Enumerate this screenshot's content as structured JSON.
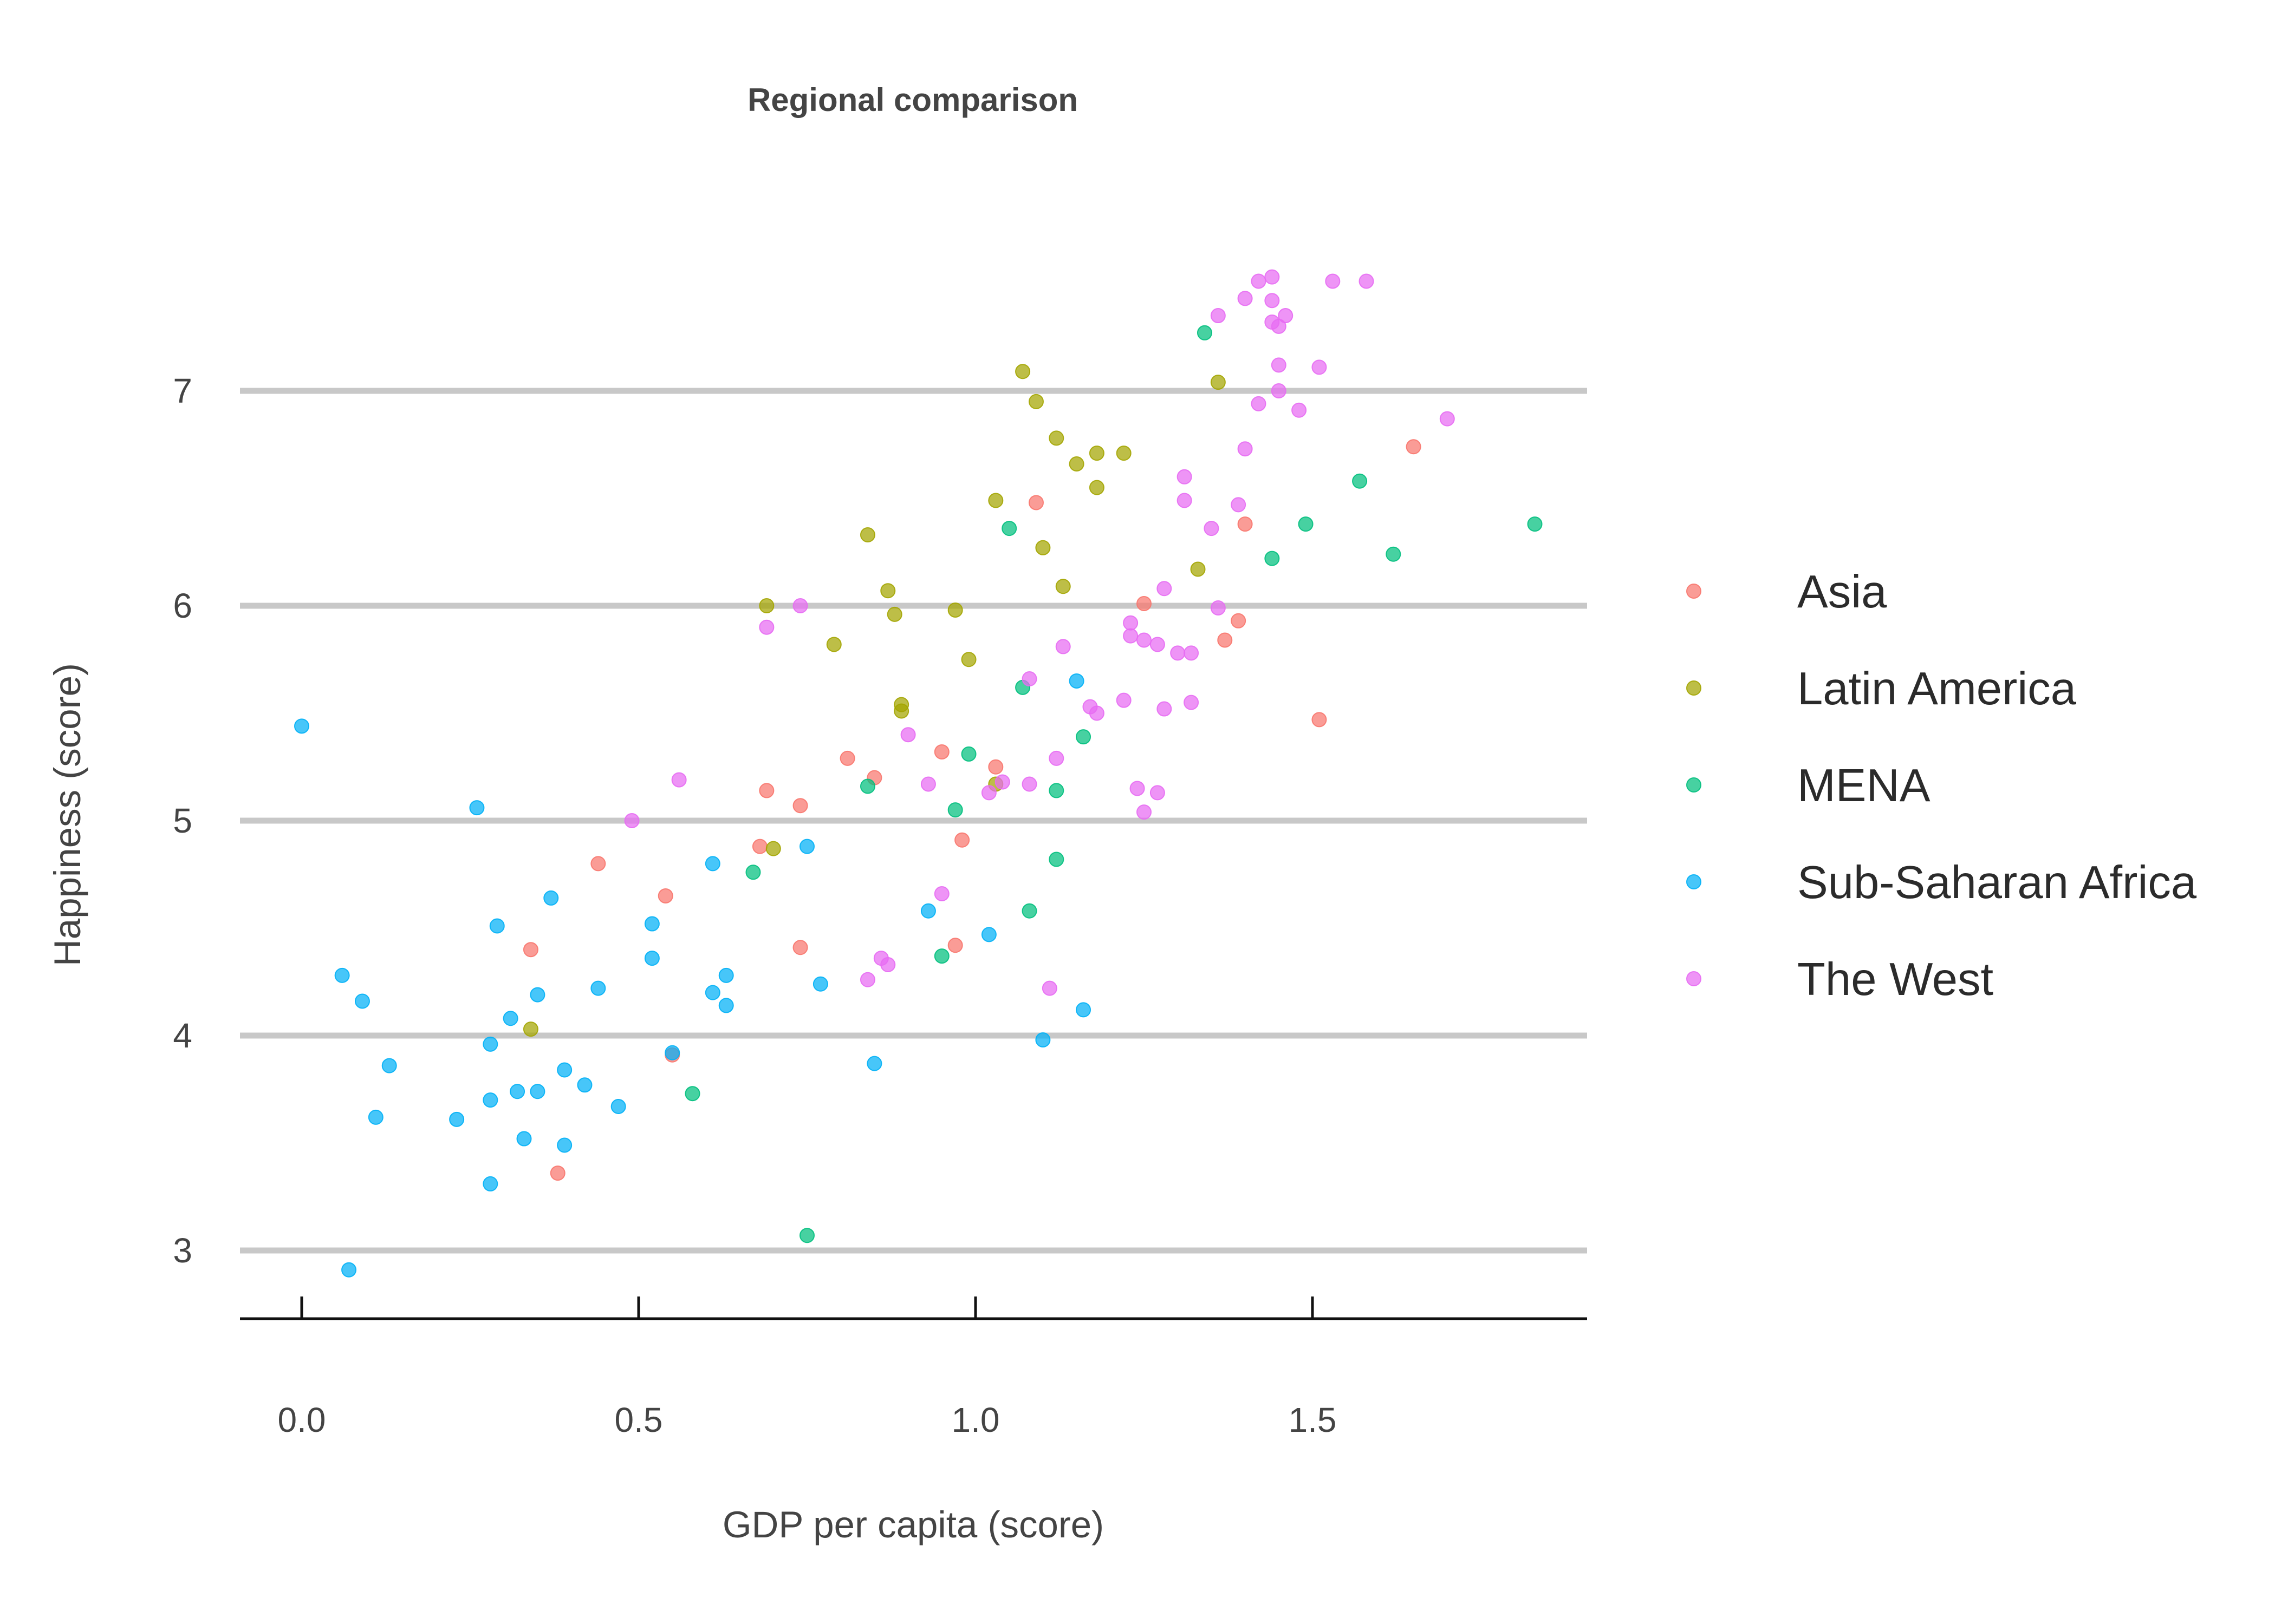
{
  "chart_data": {
    "type": "scatter",
    "title": "Regional comparison",
    "xlabel": "GDP per capita (score)",
    "ylabel": "Happiness (score)",
    "xlim": [
      -0.09,
      1.92
    ],
    "ylim": [
      2.68,
      7.9
    ],
    "xticks": [
      0.0,
      0.5,
      1.0,
      1.5
    ],
    "xtick_labels": [
      "0.0",
      "0.5",
      "1.0",
      "1.5"
    ],
    "yticks": [
      3,
      4,
      5,
      6,
      7
    ],
    "ytick_labels": [
      "3",
      "4",
      "5",
      "6",
      "7"
    ],
    "grid": "horizontal major",
    "legend_position": "right",
    "series": [
      {
        "name": "Asia",
        "color": "#F8766D",
        "points": [
          [
            0.34,
            4.4
          ],
          [
            0.38,
            3.36
          ],
          [
            0.44,
            4.8
          ],
          [
            0.54,
            4.65
          ],
          [
            0.55,
            3.91
          ],
          [
            0.68,
            4.88
          ],
          [
            0.69,
            5.14
          ],
          [
            0.74,
            5.07
          ],
          [
            0.74,
            4.41
          ],
          [
            0.81,
            5.29
          ],
          [
            0.85,
            5.2
          ],
          [
            0.95,
            5.32
          ],
          [
            0.97,
            4.42
          ],
          [
            0.98,
            4.91
          ],
          [
            1.03,
            5.25
          ],
          [
            1.09,
            6.48
          ],
          [
            1.25,
            6.01
          ],
          [
            1.37,
            5.84
          ],
          [
            1.39,
            5.93
          ],
          [
            1.4,
            6.38
          ],
          [
            1.51,
            5.47
          ],
          [
            1.65,
            6.74
          ]
        ]
      },
      {
        "name": "Latin America",
        "color": "#A3A500",
        "points": [
          [
            0.34,
            4.03
          ],
          [
            0.69,
            6.0
          ],
          [
            0.7,
            4.87
          ],
          [
            0.79,
            5.82
          ],
          [
            0.84,
            6.33
          ],
          [
            0.87,
            6.07
          ],
          [
            0.88,
            5.96
          ],
          [
            0.89,
            5.54
          ],
          [
            0.89,
            5.51
          ],
          [
            0.97,
            5.98
          ],
          [
            0.99,
            5.75
          ],
          [
            1.03,
            6.49
          ],
          [
            1.03,
            5.17
          ],
          [
            1.07,
            7.09
          ],
          [
            1.09,
            6.95
          ],
          [
            1.1,
            6.27
          ],
          [
            1.12,
            6.78
          ],
          [
            1.13,
            6.09
          ],
          [
            1.15,
            6.66
          ],
          [
            1.18,
            6.55
          ],
          [
            1.18,
            6.71
          ],
          [
            1.22,
            6.71
          ],
          [
            1.33,
            6.17
          ],
          [
            1.36,
            7.04
          ]
        ]
      },
      {
        "name": "MENA",
        "color": "#00BF7D",
        "points": [
          [
            0.58,
            3.73
          ],
          [
            0.67,
            4.76
          ],
          [
            0.75,
            3.07
          ],
          [
            0.84,
            5.16
          ],
          [
            0.95,
            4.37
          ],
          [
            0.97,
            5.05
          ],
          [
            0.99,
            5.31
          ],
          [
            1.05,
            6.36
          ],
          [
            1.07,
            5.62
          ],
          [
            1.08,
            4.58
          ],
          [
            1.12,
            5.14
          ],
          [
            1.12,
            4.82
          ],
          [
            1.16,
            5.39
          ],
          [
            1.34,
            7.27
          ],
          [
            1.44,
            6.22
          ],
          [
            1.49,
            6.38
          ],
          [
            1.57,
            6.58
          ],
          [
            1.62,
            6.24
          ],
          [
            1.83,
            6.38
          ]
        ]
      },
      {
        "name": "Sub-Saharan Africa",
        "color": "#00B0F6",
        "points": [
          [
            0.0,
            5.44
          ],
          [
            0.06,
            4.28
          ],
          [
            0.07,
            2.91
          ],
          [
            0.09,
            4.16
          ],
          [
            0.11,
            3.62
          ],
          [
            0.13,
            3.86
          ],
          [
            0.23,
            3.61
          ],
          [
            0.26,
            5.06
          ],
          [
            0.28,
            3.96
          ],
          [
            0.28,
            3.7
          ],
          [
            0.28,
            3.31
          ],
          [
            0.29,
            4.51
          ],
          [
            0.31,
            4.08
          ],
          [
            0.32,
            3.74
          ],
          [
            0.33,
            3.52
          ],
          [
            0.35,
            3.74
          ],
          [
            0.35,
            4.19
          ],
          [
            0.37,
            4.64
          ],
          [
            0.39,
            3.84
          ],
          [
            0.39,
            3.49
          ],
          [
            0.42,
            3.77
          ],
          [
            0.44,
            4.22
          ],
          [
            0.47,
            3.67
          ],
          [
            0.52,
            4.52
          ],
          [
            0.52,
            4.36
          ],
          [
            0.55,
            3.92
          ],
          [
            0.61,
            4.2
          ],
          [
            0.61,
            4.8
          ],
          [
            0.63,
            4.28
          ],
          [
            0.63,
            4.14
          ],
          [
            0.75,
            4.88
          ],
          [
            0.77,
            4.24
          ],
          [
            0.85,
            3.87
          ],
          [
            0.93,
            4.58
          ],
          [
            1.02,
            4.47
          ],
          [
            1.1,
            3.98
          ],
          [
            1.15,
            5.65
          ],
          [
            1.16,
            4.12
          ]
        ]
      },
      {
        "name": "The West",
        "color": "#E76BF3",
        "points": [
          [
            0.49,
            5.0
          ],
          [
            0.56,
            5.19
          ],
          [
            0.69,
            5.9
          ],
          [
            0.74,
            6.0
          ],
          [
            0.84,
            4.26
          ],
          [
            0.86,
            4.36
          ],
          [
            0.87,
            4.33
          ],
          [
            0.9,
            5.4
          ],
          [
            0.93,
            5.17
          ],
          [
            0.95,
            4.66
          ],
          [
            1.02,
            5.13
          ],
          [
            1.04,
            5.18
          ],
          [
            1.08,
            5.66
          ],
          [
            1.08,
            5.17
          ],
          [
            1.11,
            4.22
          ],
          [
            1.12,
            5.29
          ],
          [
            1.13,
            5.81
          ],
          [
            1.17,
            5.53
          ],
          [
            1.18,
            5.5
          ],
          [
            1.22,
            5.56
          ],
          [
            1.23,
            5.92
          ],
          [
            1.23,
            5.86
          ],
          [
            1.24,
            5.15
          ],
          [
            1.25,
            5.84
          ],
          [
            1.25,
            5.04
          ],
          [
            1.27,
            5.82
          ],
          [
            1.27,
            5.13
          ],
          [
            1.28,
            5.52
          ],
          [
            1.28,
            6.08
          ],
          [
            1.3,
            5.78
          ],
          [
            1.31,
            6.49
          ],
          [
            1.31,
            6.6
          ],
          [
            1.32,
            5.78
          ],
          [
            1.32,
            5.55
          ],
          [
            1.35,
            6.36
          ],
          [
            1.36,
            5.99
          ],
          [
            1.36,
            7.35
          ],
          [
            1.39,
            6.47
          ],
          [
            1.4,
            6.73
          ],
          [
            1.4,
            7.43
          ],
          [
            1.42,
            6.94
          ],
          [
            1.42,
            7.51
          ],
          [
            1.44,
            7.42
          ],
          [
            1.44,
            7.32
          ],
          [
            1.44,
            7.53
          ],
          [
            1.45,
            7.3
          ],
          [
            1.45,
            7.12
          ],
          [
            1.45,
            7.0
          ],
          [
            1.46,
            7.35
          ],
          [
            1.48,
            6.91
          ],
          [
            1.51,
            7.11
          ],
          [
            1.53,
            7.51
          ],
          [
            1.58,
            7.51
          ],
          [
            1.7,
            6.87
          ]
        ]
      }
    ]
  }
}
